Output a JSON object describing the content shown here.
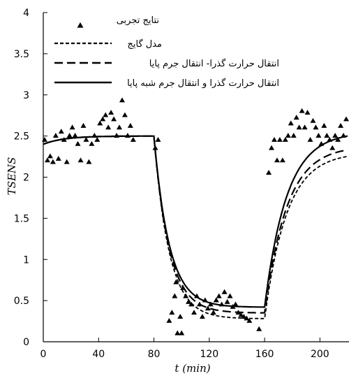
{
  "chart_data": {
    "type": "line",
    "title": "",
    "xlabel": "t (min)",
    "ylabel": "TSENS",
    "xlim": [
      0,
      220
    ],
    "ylim": [
      0,
      4
    ],
    "xticks": [
      0,
      40,
      80,
      120,
      160,
      200
    ],
    "yticks": [
      0,
      0.5,
      1,
      1.5,
      2,
      2.5,
      3,
      3.5,
      4
    ],
    "ytick_labels": [
      "0",
      "0.5",
      "1",
      "1.5",
      "2",
      "2.5",
      "3",
      "3.5",
      "4"
    ],
    "legend_position": "top-right",
    "grid": false,
    "series": [
      {
        "name": "نتایج تجربی",
        "style": "triangle-markers",
        "color": "#000000",
        "points": [
          [
            1,
            2.45
          ],
          [
            3,
            2.2
          ],
          [
            5,
            2.25
          ],
          [
            7,
            2.18
          ],
          [
            9,
            2.5
          ],
          [
            11,
            2.22
          ],
          [
            13,
            2.55
          ],
          [
            15,
            2.45
          ],
          [
            17,
            2.18
          ],
          [
            19,
            2.5
          ],
          [
            21,
            2.6
          ],
          [
            23,
            2.5
          ],
          [
            25,
            2.4
          ],
          [
            27,
            2.2
          ],
          [
            29,
            2.62
          ],
          [
            31,
            2.45
          ],
          [
            33,
            2.18
          ],
          [
            35,
            2.4
          ],
          [
            37,
            2.5
          ],
          [
            39,
            2.45
          ],
          [
            41,
            2.65
          ],
          [
            43,
            2.7
          ],
          [
            45,
            2.75
          ],
          [
            47,
            2.6
          ],
          [
            49,
            2.78
          ],
          [
            51,
            2.7
          ],
          [
            53,
            2.5
          ],
          [
            55,
            2.6
          ],
          [
            57,
            2.93
          ],
          [
            59,
            2.75
          ],
          [
            61,
            2.5
          ],
          [
            63,
            2.62
          ],
          [
            65,
            2.45
          ],
          [
            81,
            2.35
          ],
          [
            83,
            2.45
          ],
          [
            91,
            0.25
          ],
          [
            93,
            0.35
          ],
          [
            95,
            0.55
          ],
          [
            96,
            0.72
          ],
          [
            97,
            0.1
          ],
          [
            99,
            0.3
          ],
          [
            100,
            0.1
          ],
          [
            101,
            0.65
          ],
          [
            103,
            0.55
          ],
          [
            105,
            0.48
          ],
          [
            107,
            0.45
          ],
          [
            109,
            0.35
          ],
          [
            111,
            0.55
          ],
          [
            113,
            0.45
          ],
          [
            115,
            0.3
          ],
          [
            117,
            0.5
          ],
          [
            119,
            0.4
          ],
          [
            121,
            0.45
          ],
          [
            123,
            0.35
          ],
          [
            125,
            0.5
          ],
          [
            127,
            0.55
          ],
          [
            129,
            0.45
          ],
          [
            131,
            0.6
          ],
          [
            133,
            0.48
          ],
          [
            135,
            0.55
          ],
          [
            137,
            0.42
          ],
          [
            139,
            0.45
          ],
          [
            141,
            0.35
          ],
          [
            143,
            0.32
          ],
          [
            145,
            0.3
          ],
          [
            147,
            0.28
          ],
          [
            149,
            0.25
          ],
          [
            156,
            0.15
          ],
          [
            163,
            2.05
          ],
          [
            165,
            2.35
          ],
          [
            167,
            2.45
          ],
          [
            169,
            2.2
          ],
          [
            171,
            2.45
          ],
          [
            173,
            2.2
          ],
          [
            175,
            2.45
          ],
          [
            177,
            2.5
          ],
          [
            179,
            2.65
          ],
          [
            181,
            2.5
          ],
          [
            183,
            2.72
          ],
          [
            185,
            2.6
          ],
          [
            187,
            2.8
          ],
          [
            189,
            2.6
          ],
          [
            191,
            2.78
          ],
          [
            193,
            2.45
          ],
          [
            195,
            2.68
          ],
          [
            197,
            2.6
          ],
          [
            199,
            2.5
          ],
          [
            201,
            2.4
          ],
          [
            203,
            2.62
          ],
          [
            205,
            2.5
          ],
          [
            207,
            2.45
          ],
          [
            209,
            2.35
          ],
          [
            211,
            2.5
          ],
          [
            213,
            2.45
          ],
          [
            215,
            2.62
          ],
          [
            217,
            2.5
          ],
          [
            219,
            2.7
          ]
        ]
      },
      {
        "name": "مدل گایج",
        "style": "short-dash",
        "color": "#000000",
        "low": 0.28,
        "final": 2.3
      },
      {
        "name": "انتقال حرارت گذرا- انتقال جرم پایا",
        "style": "long-dash",
        "color": "#000000",
        "low": 0.35,
        "final": 2.38
      },
      {
        "name": "انتقال حرارت گذرا و انتقال جرم شبه پایا",
        "style": "solid",
        "color": "#000000",
        "low": 0.42,
        "final": 2.55
      }
    ]
  }
}
